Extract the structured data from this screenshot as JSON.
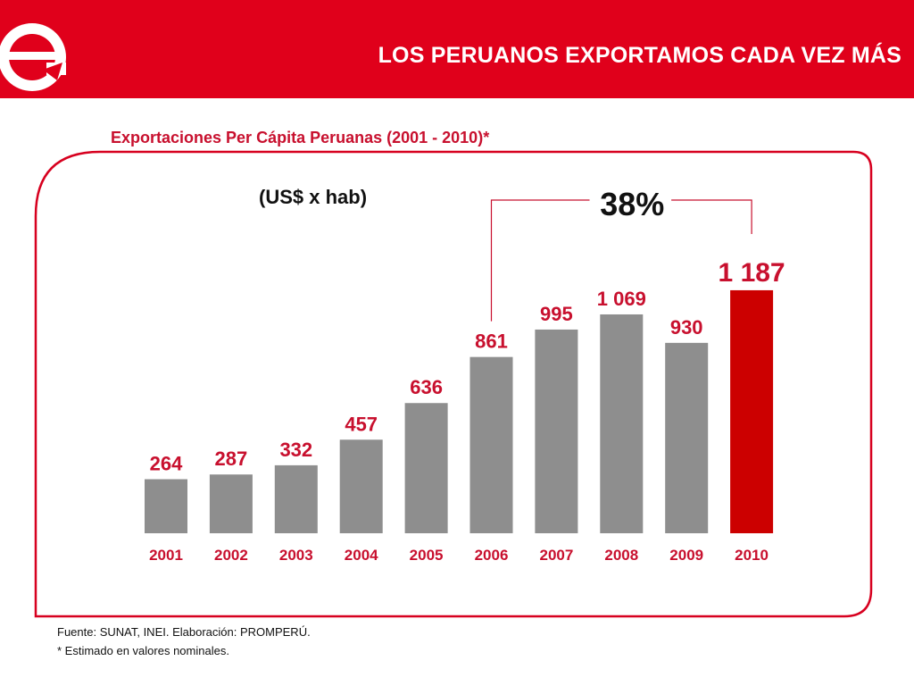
{
  "header": {
    "title": "LOS PERUANOS EXPORTAMOS CADA VEZ MÁS"
  },
  "logo": {
    "letter": "e",
    "icon": "circled-e-arrow-logo-icon"
  },
  "chart_data": {
    "type": "bar",
    "title": "Exportaciones Per Cápita Peruanas (2001 - 2010)*",
    "unit_label": "(US$ x hab)",
    "categories": [
      "2001",
      "2002",
      "2003",
      "2004",
      "2005",
      "2006",
      "2007",
      "2008",
      "2009",
      "2010"
    ],
    "values": [
      264,
      287,
      332,
      457,
      636,
      861,
      995,
      1069,
      930,
      1187
    ],
    "value_labels": [
      "264",
      "287",
      "332",
      "457",
      "636",
      "861",
      "995",
      "1 069",
      "930",
      "1 187"
    ],
    "highlight_index": 9,
    "annotation": {
      "text": "38%",
      "from_category": "2006",
      "to_category": "2010"
    },
    "ylim": [
      0,
      1300
    ],
    "grid": false,
    "colors": {
      "bar": "#8e8e8e",
      "highlight_bar": "#cc0000",
      "label": "#c8102e"
    }
  },
  "footer": {
    "source": "Fuente: SUNAT, INEI. Elaboración: PROMPERÚ.",
    "note": "* Estimado en valores nominales."
  }
}
